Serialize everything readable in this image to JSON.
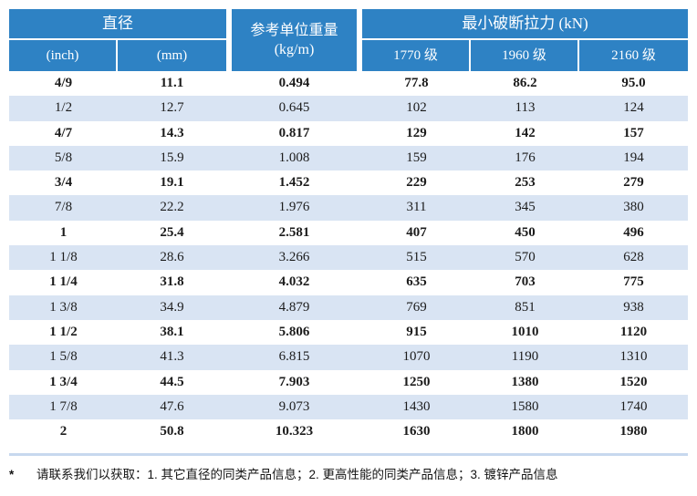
{
  "table": {
    "header": {
      "diameter_group": "直径",
      "inch": "(inch)",
      "mm": "(mm)",
      "unit_weight_line1": "参考单位重量",
      "unit_weight_line2": "(kg/m)",
      "breaking_force_group": "最小破断拉力 (kN)",
      "grade_1770": "1770 级",
      "grade_1960": "1960 级",
      "grade_2160": "2160 级"
    },
    "rows": [
      {
        "inch": "4/9",
        "mm": "11.1",
        "kgm": "0.494",
        "g1770": "77.8",
        "g1960": "86.2",
        "g2160": "95.0"
      },
      {
        "inch": "1/2",
        "mm": "12.7",
        "kgm": "0.645",
        "g1770": "102",
        "g1960": "113",
        "g2160": "124"
      },
      {
        "inch": "4/7",
        "mm": "14.3",
        "kgm": "0.817",
        "g1770": "129",
        "g1960": "142",
        "g2160": "157"
      },
      {
        "inch": "5/8",
        "mm": "15.9",
        "kgm": "1.008",
        "g1770": "159",
        "g1960": "176",
        "g2160": "194"
      },
      {
        "inch": "3/4",
        "mm": "19.1",
        "kgm": "1.452",
        "g1770": "229",
        "g1960": "253",
        "g2160": "279"
      },
      {
        "inch": "7/8",
        "mm": "22.2",
        "kgm": "1.976",
        "g1770": "311",
        "g1960": "345",
        "g2160": "380"
      },
      {
        "inch": "1",
        "mm": "25.4",
        "kgm": "2.581",
        "g1770": "407",
        "g1960": "450",
        "g2160": "496"
      },
      {
        "inch": "1 1/8",
        "mm": "28.6",
        "kgm": "3.266",
        "g1770": "515",
        "g1960": "570",
        "g2160": "628"
      },
      {
        "inch": "1 1/4",
        "mm": "31.8",
        "kgm": "4.032",
        "g1770": "635",
        "g1960": "703",
        "g2160": "775"
      },
      {
        "inch": "1 3/8",
        "mm": "34.9",
        "kgm": "4.879",
        "g1770": "769",
        "g1960": "851",
        "g2160": "938"
      },
      {
        "inch": "1 1/2",
        "mm": "38.1",
        "kgm": "5.806",
        "g1770": "915",
        "g1960": "1010",
        "g2160": "1120"
      },
      {
        "inch": "1 5/8",
        "mm": "41.3",
        "kgm": "6.815",
        "g1770": "1070",
        "g1960": "1190",
        "g2160": "1310"
      },
      {
        "inch": "1 3/4",
        "mm": "44.5",
        "kgm": "7.903",
        "g1770": "1250",
        "g1960": "1380",
        "g2160": "1520"
      },
      {
        "inch": "1 7/8",
        "mm": "47.6",
        "kgm": "9.073",
        "g1770": "1430",
        "g1960": "1580",
        "g2160": "1740"
      },
      {
        "inch": "2",
        "mm": "50.8",
        "kgm": "10.323",
        "g1770": "1630",
        "g1960": "1800",
        "g2160": "1980"
      }
    ]
  },
  "footnote": {
    "marker": "*",
    "text": "请联系我们以获取：1. 其它直径的同类产品信息；2. 更高性能的同类产品信息；3. 镀锌产品信息"
  },
  "colors": {
    "header_blue": "#2e82c4",
    "stripe_blue": "#d9e4f3",
    "rule_blue": "#c7d8ee"
  }
}
